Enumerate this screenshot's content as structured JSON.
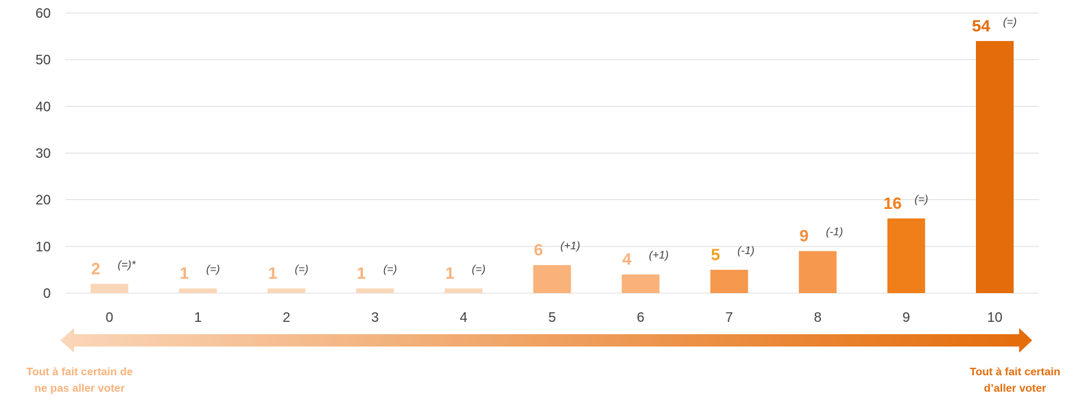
{
  "chart_data": {
    "type": "bar",
    "categories": [
      "0",
      "1",
      "2",
      "3",
      "4",
      "5",
      "6",
      "7",
      "8",
      "9",
      "10"
    ],
    "values": [
      2,
      1,
      1,
      1,
      1,
      6,
      4,
      5,
      9,
      16,
      54
    ],
    "value_labels": [
      "2",
      "1",
      "1",
      "1",
      "1",
      "6",
      "4",
      "5",
      "9",
      "16",
      "54"
    ],
    "change_labels": [
      "(=)*",
      "(=)",
      "(=)",
      "(=)",
      "(=)",
      "(+1)",
      "(+1)",
      "(-1)",
      "(-1)",
      "(=)",
      "(=)"
    ],
    "bar_colors": [
      "#FAD6B8",
      "#FAD6B8",
      "#FAD6B8",
      "#FAD6B8",
      "#FAD6B8",
      "#F8B27A",
      "#F8B27A",
      "#F6984D",
      "#F6984D",
      "#F07F1A",
      "#E46C0A"
    ],
    "value_label_colors": [
      "#F8B27A",
      "#F8B27A",
      "#F8B27A",
      "#F8B27A",
      "#F8B27A",
      "#F8B27A",
      "#F8B27A",
      "#F0A020",
      "#F08C3C",
      "#F07F1A",
      "#E46C0A"
    ],
    "ylim": [
      0,
      60
    ],
    "yticks": [
      0,
      10,
      20,
      30,
      40,
      50,
      60
    ],
    "grid": true,
    "xlabel": "",
    "ylabel": ""
  },
  "scale": {
    "left_label": [
      "Tout à fait certain de",
      "ne pas aller voter"
    ],
    "right_label": [
      "Tout à fait certain",
      "d’aller voter"
    ],
    "gradient_start": "#FAD6B8",
    "gradient_end": "#E46C0A",
    "left_label_color": "#F8B27A",
    "right_label_color": "#E46C0A"
  },
  "colors": {
    "gridline": "#D9D9D9",
    "tick_text": "#404040"
  }
}
